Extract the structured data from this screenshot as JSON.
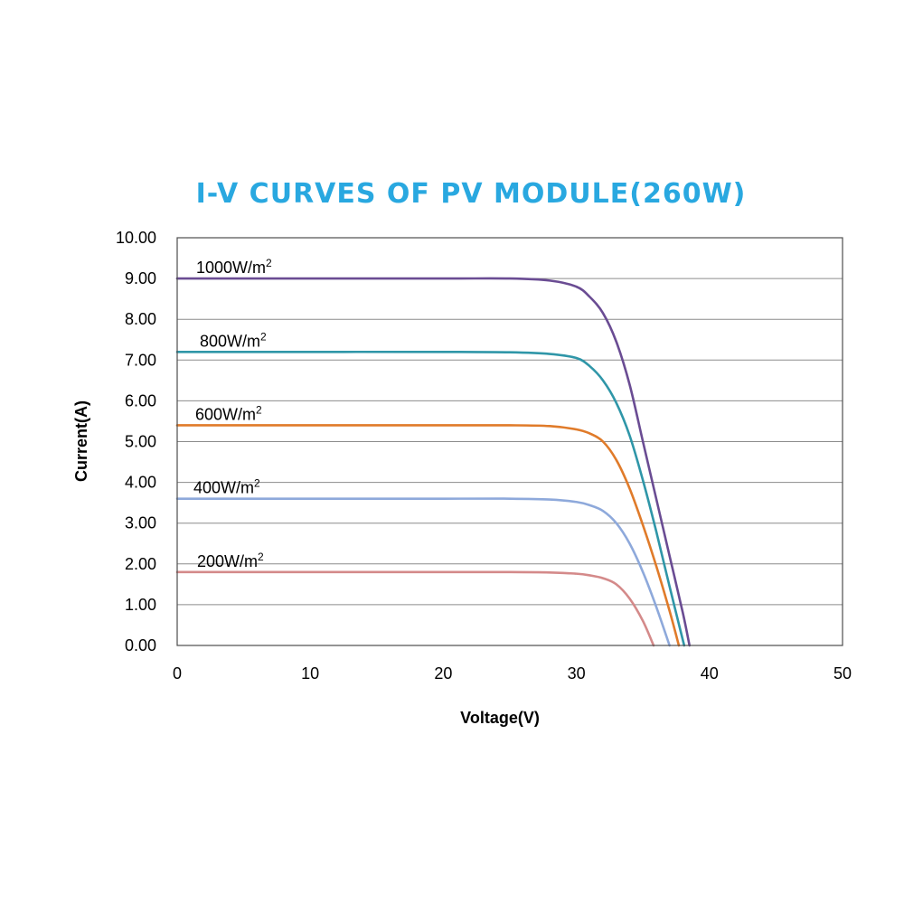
{
  "chart_data": {
    "type": "line",
    "title": "I-V CURVES OF PV MODULE(260W)",
    "xlabel": "Voltage(V)",
    "ylabel": "Current(A)",
    "xlim": [
      0,
      50
    ],
    "ylim": [
      0,
      10
    ],
    "x_ticks": [
      "0",
      "10",
      "20",
      "30",
      "40",
      "50"
    ],
    "y_ticks": [
      "0.00",
      "1.00",
      "2.00",
      "3.00",
      "4.00",
      "5.00",
      "6.00",
      "7.00",
      "8.00",
      "9.00",
      "10.00"
    ],
    "grid": true,
    "series": [
      {
        "name": "1000W/m2",
        "label_text": "1000W/m",
        "label_sup": "2",
        "color": "#6a4c93",
        "x": [
          0,
          10,
          20,
          25,
          28,
          30,
          31,
          32,
          33,
          34,
          35,
          36,
          37,
          38,
          38.5
        ],
        "y": [
          9.0,
          9.0,
          9.0,
          9.0,
          8.95,
          8.8,
          8.55,
          8.15,
          7.45,
          6.4,
          5.0,
          3.6,
          2.2,
          0.8,
          0.0
        ]
      },
      {
        "name": "800W/m2",
        "label_text": "800W/m",
        "label_sup": "2",
        "color": "#2f96a8",
        "x": [
          0,
          10,
          20,
          25,
          28,
          30,
          31,
          32,
          33,
          34,
          35,
          36,
          37,
          38.1
        ],
        "y": [
          7.2,
          7.2,
          7.2,
          7.19,
          7.15,
          7.05,
          6.85,
          6.5,
          5.95,
          5.15,
          4.05,
          2.8,
          1.45,
          0.0
        ]
      },
      {
        "name": "600W/m2",
        "label_text": "600W/m",
        "label_sup": "2",
        "color": "#e07b2a",
        "x": [
          0,
          10,
          20,
          25,
          28,
          30,
          31,
          32,
          33,
          34,
          35,
          36,
          37,
          37.7
        ],
        "y": [
          5.4,
          5.4,
          5.4,
          5.4,
          5.38,
          5.3,
          5.2,
          5.0,
          4.55,
          3.85,
          2.95,
          1.95,
          0.85,
          0.0
        ]
      },
      {
        "name": "400W/m2",
        "label_text": "400W/m",
        "label_sup": "2",
        "color": "#8ea9db",
        "x": [
          0,
          10,
          20,
          25,
          28,
          30,
          31,
          32,
          33,
          34,
          35,
          36,
          37
        ],
        "y": [
          3.6,
          3.6,
          3.6,
          3.6,
          3.58,
          3.52,
          3.44,
          3.3,
          3.0,
          2.5,
          1.8,
          0.95,
          0.0
        ]
      },
      {
        "name": "200W/m2",
        "label_text": "200W/m",
        "label_sup": "2",
        "color": "#d48a8a",
        "x": [
          0,
          10,
          20,
          25,
          28,
          30,
          31,
          32,
          33,
          34,
          35,
          35.8
        ],
        "y": [
          1.8,
          1.8,
          1.8,
          1.8,
          1.79,
          1.76,
          1.72,
          1.65,
          1.5,
          1.15,
          0.6,
          0.0
        ]
      }
    ]
  }
}
